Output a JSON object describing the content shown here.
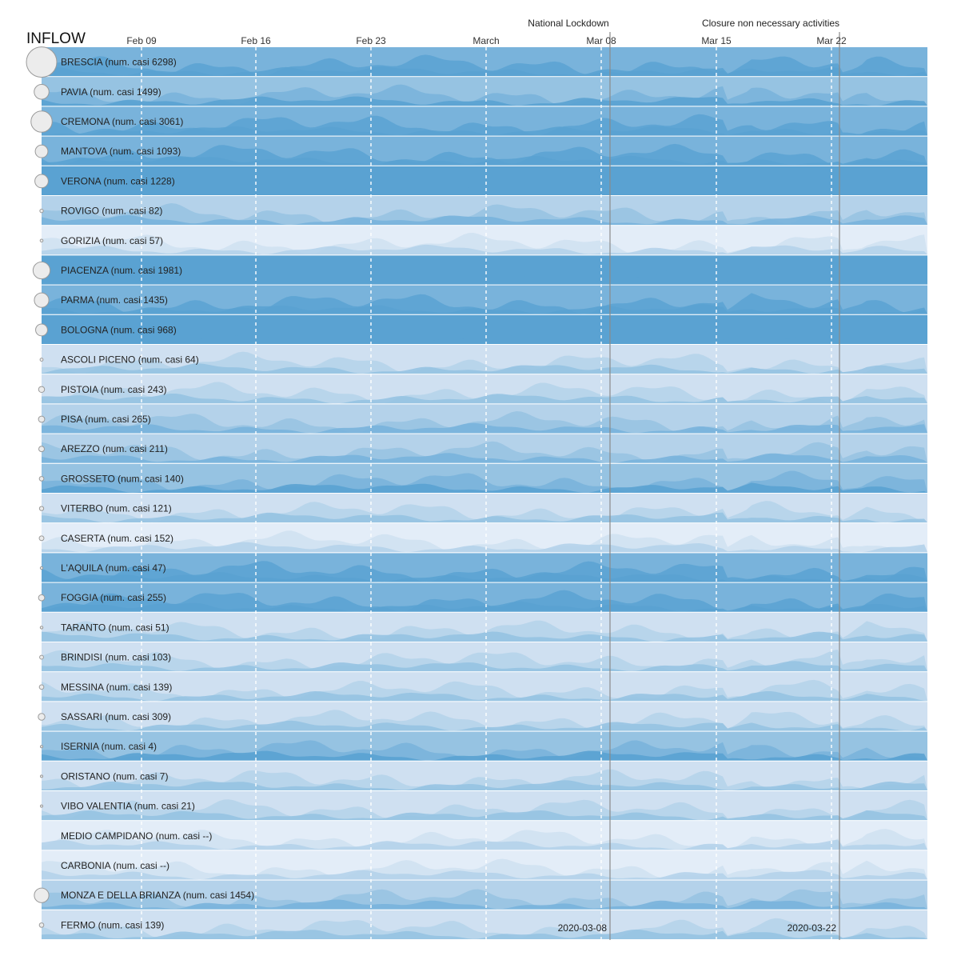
{
  "chart_data": {
    "type": "area",
    "title": "INFLOW",
    "x_ticks": [
      "Feb 09",
      "Feb 16",
      "Feb 23",
      "March",
      "Mar 08",
      "Mar 15",
      "Mar 22"
    ],
    "events": [
      {
        "name": "National Lockdown",
        "date": "2020-03-08"
      },
      {
        "name": "Closure non necessary activities",
        "date": "2020-03-22"
      }
    ],
    "colors": {
      "band_levels": [
        "#e3edf8",
        "#cfe0f1",
        "#b4d2ea",
        "#96c3e2",
        "#79b3db",
        "#5aa2d2"
      ],
      "grid": "#ffffff",
      "event_line": "#8a8a8a",
      "circle_fill": "#ececec",
      "circle_stroke": "#9a9a9a"
    },
    "series": [
      {
        "name": "BRESCIA",
        "cases": "6298",
        "level": 4
      },
      {
        "name": "PAVIA",
        "cases": "1499",
        "level": 3
      },
      {
        "name": "CREMONA",
        "cases": "3061",
        "level": 4
      },
      {
        "name": "MANTOVA",
        "cases": "1093",
        "level": 4
      },
      {
        "name": "VERONA",
        "cases": "1228",
        "level": 5
      },
      {
        "name": "ROVIGO",
        "cases": "82",
        "level": 2
      },
      {
        "name": "GORIZIA",
        "cases": "57",
        "level": 0
      },
      {
        "name": "PIACENZA",
        "cases": "1981",
        "level": 5
      },
      {
        "name": "PARMA",
        "cases": "1435",
        "level": 4
      },
      {
        "name": "BOLOGNA",
        "cases": "968",
        "level": 5
      },
      {
        "name": "ASCOLI PICENO",
        "cases": "64",
        "level": 1
      },
      {
        "name": "PISTOIA",
        "cases": "243",
        "level": 1
      },
      {
        "name": "PISA",
        "cases": "265",
        "level": 2
      },
      {
        "name": "AREZZO",
        "cases": "211",
        "level": 2
      },
      {
        "name": "GROSSETO",
        "cases": "140",
        "level": 3
      },
      {
        "name": "VITERBO",
        "cases": "121",
        "level": 1
      },
      {
        "name": "CASERTA",
        "cases": "152",
        "level": 0
      },
      {
        "name": "L'AQUILA",
        "cases": "47",
        "level": 4
      },
      {
        "name": "FOGGIA",
        "cases": "255",
        "level": 4
      },
      {
        "name": "TARANTO",
        "cases": "51",
        "level": 1
      },
      {
        "name": "BRINDISI",
        "cases": "103",
        "level": 1
      },
      {
        "name": "MESSINA",
        "cases": "139",
        "level": 1
      },
      {
        "name": "SASSARI",
        "cases": "309",
        "level": 1
      },
      {
        "name": "ISERNIA",
        "cases": "4",
        "level": 3
      },
      {
        "name": "ORISTANO",
        "cases": "7",
        "level": 1
      },
      {
        "name": "VIBO VALENTIA",
        "cases": "21",
        "level": 1
      },
      {
        "name": "MEDIO CAMPIDANO",
        "cases": "--",
        "level": 0
      },
      {
        "name": "CARBONIA",
        "cases": "--",
        "level": 0
      },
      {
        "name": "MONZA E DELLA BRIANZA",
        "cases": "1454",
        "level": 2
      },
      {
        "name": "FERMO",
        "cases": "139",
        "level": 1
      }
    ]
  }
}
